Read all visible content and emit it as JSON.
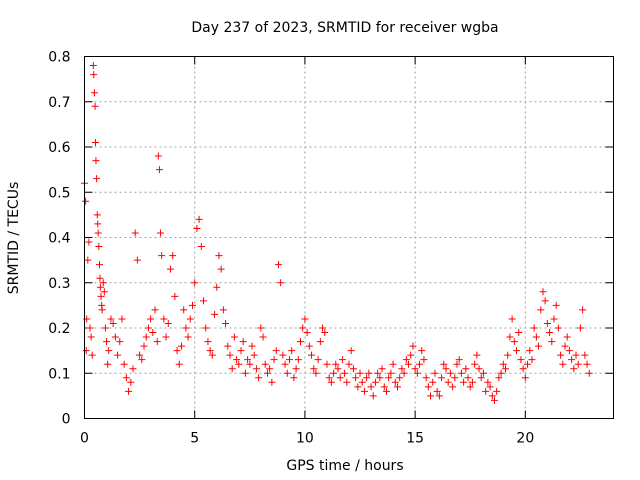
{
  "chart_data": {
    "type": "scatter",
    "title": "Day 237 of 2023, SRMTID for receiver wgba",
    "xlabel": "GPS time / hours",
    "ylabel": "SRMTID / TECUs",
    "xlim": [
      0,
      24
    ],
    "ylim": [
      0,
      0.8
    ],
    "xticks": [
      0,
      5,
      10,
      15,
      20
    ],
    "xtick_labels": [
      "0",
      "5",
      "10",
      "15",
      "20"
    ],
    "yticks": [
      0,
      0.1,
      0.2,
      0.3,
      0.4,
      0.5,
      0.6,
      0.7,
      0.8
    ],
    "ytick_labels": [
      "0",
      "0.1",
      "0.2",
      "0.3",
      "0.4",
      "0.5",
      "0.6",
      "0.7",
      "0.8"
    ],
    "grid": true,
    "marker": "+",
    "color": "#ff0000",
    "series": [
      {
        "name": "wgba",
        "x": [
          0.0,
          0.05,
          0.08,
          0.1,
          0.15,
          0.2,
          0.25,
          0.3,
          0.35,
          0.4,
          0.42,
          0.45,
          0.48,
          0.5,
          0.52,
          0.55,
          0.58,
          0.6,
          0.62,
          0.65,
          0.68,
          0.7,
          0.72,
          0.75,
          0.78,
          0.8,
          0.85,
          0.9,
          0.95,
          1.0,
          1.05,
          1.1,
          1.2,
          1.3,
          1.4,
          1.5,
          1.6,
          1.7,
          1.8,
          1.9,
          2.0,
          2.1,
          2.2,
          2.3,
          2.4,
          2.5,
          2.6,
          2.7,
          2.8,
          2.9,
          3.0,
          3.1,
          3.2,
          3.3,
          3.35,
          3.4,
          3.45,
          3.5,
          3.6,
          3.7,
          3.8,
          3.9,
          4.0,
          4.1,
          4.2,
          4.3,
          4.4,
          4.5,
          4.6,
          4.7,
          4.8,
          4.9,
          5.0,
          5.1,
          5.2,
          5.3,
          5.4,
          5.5,
          5.6,
          5.7,
          5.8,
          5.9,
          6.0,
          6.1,
          6.2,
          6.3,
          6.4,
          6.5,
          6.6,
          6.7,
          6.8,
          6.9,
          7.0,
          7.1,
          7.2,
          7.3,
          7.4,
          7.5,
          7.6,
          7.7,
          7.8,
          7.9,
          8.0,
          8.1,
          8.2,
          8.3,
          8.4,
          8.5,
          8.6,
          8.7,
          8.8,
          8.9,
          9.0,
          9.1,
          9.2,
          9.3,
          9.4,
          9.5,
          9.6,
          9.7,
          9.8,
          9.9,
          10.0,
          10.1,
          10.2,
          10.3,
          10.4,
          10.5,
          10.6,
          10.7,
          10.8,
          10.9,
          11.0,
          11.1,
          11.2,
          11.3,
          11.4,
          11.5,
          11.6,
          11.7,
          11.8,
          11.9,
          12.0,
          12.1,
          12.2,
          12.3,
          12.4,
          12.5,
          12.6,
          12.7,
          12.8,
          12.9,
          13.0,
          13.1,
          13.2,
          13.3,
          13.4,
          13.5,
          13.6,
          13.7,
          13.8,
          13.9,
          14.0,
          14.1,
          14.2,
          14.3,
          14.4,
          14.5,
          14.6,
          14.7,
          14.8,
          14.9,
          15.0,
          15.1,
          15.2,
          15.3,
          15.4,
          15.5,
          15.6,
          15.7,
          15.8,
          15.9,
          16.0,
          16.1,
          16.2,
          16.3,
          16.4,
          16.5,
          16.6,
          16.7,
          16.8,
          16.9,
          17.0,
          17.1,
          17.2,
          17.3,
          17.4,
          17.5,
          17.6,
          17.7,
          17.8,
          17.9,
          18.0,
          18.1,
          18.2,
          18.3,
          18.4,
          18.5,
          18.6,
          18.7,
          18.8,
          18.9,
          19.0,
          19.1,
          19.2,
          19.3,
          19.4,
          19.5,
          19.6,
          19.7,
          19.8,
          19.9,
          20.0,
          20.1,
          20.2,
          20.3,
          20.4,
          20.5,
          20.6,
          20.7,
          20.8,
          20.9,
          21.0,
          21.1,
          21.2,
          21.3,
          21.4,
          21.5,
          21.6,
          21.7,
          21.8,
          21.9,
          22.0,
          22.1,
          22.2,
          22.3,
          22.4,
          22.5,
          22.6,
          22.7,
          22.8,
          22.9
        ],
        "y": [
          0.52,
          0.48,
          0.15,
          0.22,
          0.35,
          0.39,
          0.2,
          0.18,
          0.14,
          0.78,
          0.76,
          0.72,
          0.69,
          0.61,
          0.57,
          0.53,
          0.45,
          0.43,
          0.41,
          0.38,
          0.34,
          0.31,
          0.29,
          0.27,
          0.25,
          0.24,
          0.3,
          0.28,
          0.2,
          0.17,
          0.12,
          0.15,
          0.22,
          0.21,
          0.18,
          0.14,
          0.17,
          0.22,
          0.12,
          0.09,
          0.06,
          0.08,
          0.11,
          0.41,
          0.35,
          0.14,
          0.13,
          0.16,
          0.18,
          0.2,
          0.22,
          0.19,
          0.24,
          0.17,
          0.58,
          0.55,
          0.41,
          0.36,
          0.22,
          0.18,
          0.21,
          0.33,
          0.36,
          0.27,
          0.15,
          0.12,
          0.16,
          0.24,
          0.2,
          0.18,
          0.22,
          0.25,
          0.3,
          0.42,
          0.44,
          0.38,
          0.26,
          0.2,
          0.17,
          0.15,
          0.14,
          0.23,
          0.29,
          0.36,
          0.33,
          0.24,
          0.21,
          0.16,
          0.14,
          0.11,
          0.18,
          0.13,
          0.12,
          0.15,
          0.17,
          0.1,
          0.13,
          0.12,
          0.16,
          0.14,
          0.11,
          0.09,
          0.2,
          0.18,
          0.12,
          0.1,
          0.11,
          0.08,
          0.13,
          0.15,
          0.34,
          0.3,
          0.14,
          0.12,
          0.1,
          0.13,
          0.15,
          0.09,
          0.11,
          0.13,
          0.17,
          0.2,
          0.22,
          0.19,
          0.16,
          0.14,
          0.11,
          0.1,
          0.13,
          0.17,
          0.2,
          0.19,
          0.12,
          0.09,
          0.08,
          0.1,
          0.12,
          0.11,
          0.09,
          0.13,
          0.1,
          0.08,
          0.12,
          0.15,
          0.11,
          0.09,
          0.07,
          0.1,
          0.08,
          0.06,
          0.09,
          0.1,
          0.07,
          0.05,
          0.08,
          0.1,
          0.09,
          0.11,
          0.07,
          0.06,
          0.09,
          0.1,
          0.12,
          0.08,
          0.07,
          0.09,
          0.11,
          0.1,
          0.13,
          0.12,
          0.14,
          0.16,
          0.11,
          0.1,
          0.12,
          0.15,
          0.13,
          0.09,
          0.07,
          0.05,
          0.08,
          0.1,
          0.06,
          0.05,
          0.09,
          0.12,
          0.11,
          0.08,
          0.1,
          0.07,
          0.09,
          0.12,
          0.13,
          0.1,
          0.08,
          0.11,
          0.09,
          0.07,
          0.08,
          0.12,
          0.14,
          0.11,
          0.09,
          0.1,
          0.06,
          0.08,
          0.07,
          0.05,
          0.04,
          0.06,
          0.09,
          0.1,
          0.12,
          0.11,
          0.14,
          0.18,
          0.22,
          0.17,
          0.15,
          0.19,
          0.13,
          0.11,
          0.09,
          0.12,
          0.15,
          0.13,
          0.2,
          0.18,
          0.16,
          0.24,
          0.28,
          0.26,
          0.21,
          0.19,
          0.17,
          0.22,
          0.25,
          0.2,
          0.14,
          0.12,
          0.16,
          0.18,
          0.15,
          0.13,
          0.11,
          0.14,
          0.12,
          0.2,
          0.24,
          0.14,
          0.12,
          0.1
        ]
      }
    ]
  }
}
